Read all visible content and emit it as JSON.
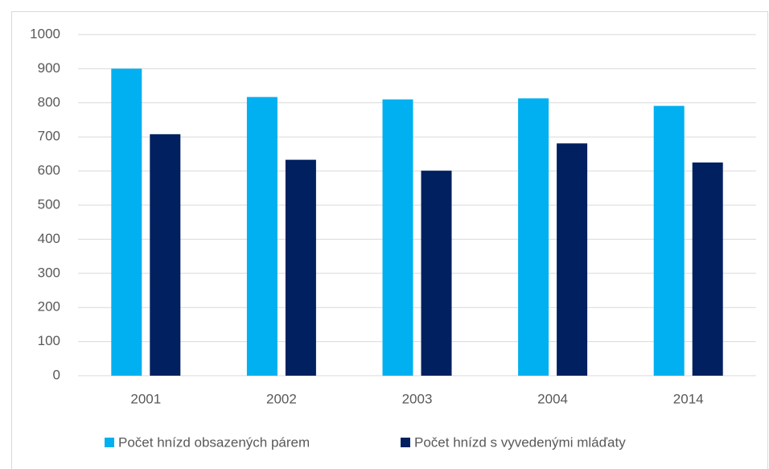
{
  "chart_data": {
    "type": "bar",
    "categories": [
      "2001",
      "2002",
      "2003",
      "2004",
      "2014"
    ],
    "series": [
      {
        "name": "Počet hnízd obsazených párem",
        "color": "#00b0f0",
        "values": [
          900,
          817,
          810,
          813,
          791
        ]
      },
      {
        "name": "Počet hnízd s vyvedenými mláďaty",
        "color": "#002060",
        "values": [
          708,
          633,
          601,
          681,
          625
        ]
      }
    ],
    "ylim": [
      0,
      1000
    ],
    "yticks": [
      0,
      100,
      200,
      300,
      400,
      500,
      600,
      700,
      800,
      900,
      1000
    ],
    "grid": true,
    "legend": "bottom"
  }
}
